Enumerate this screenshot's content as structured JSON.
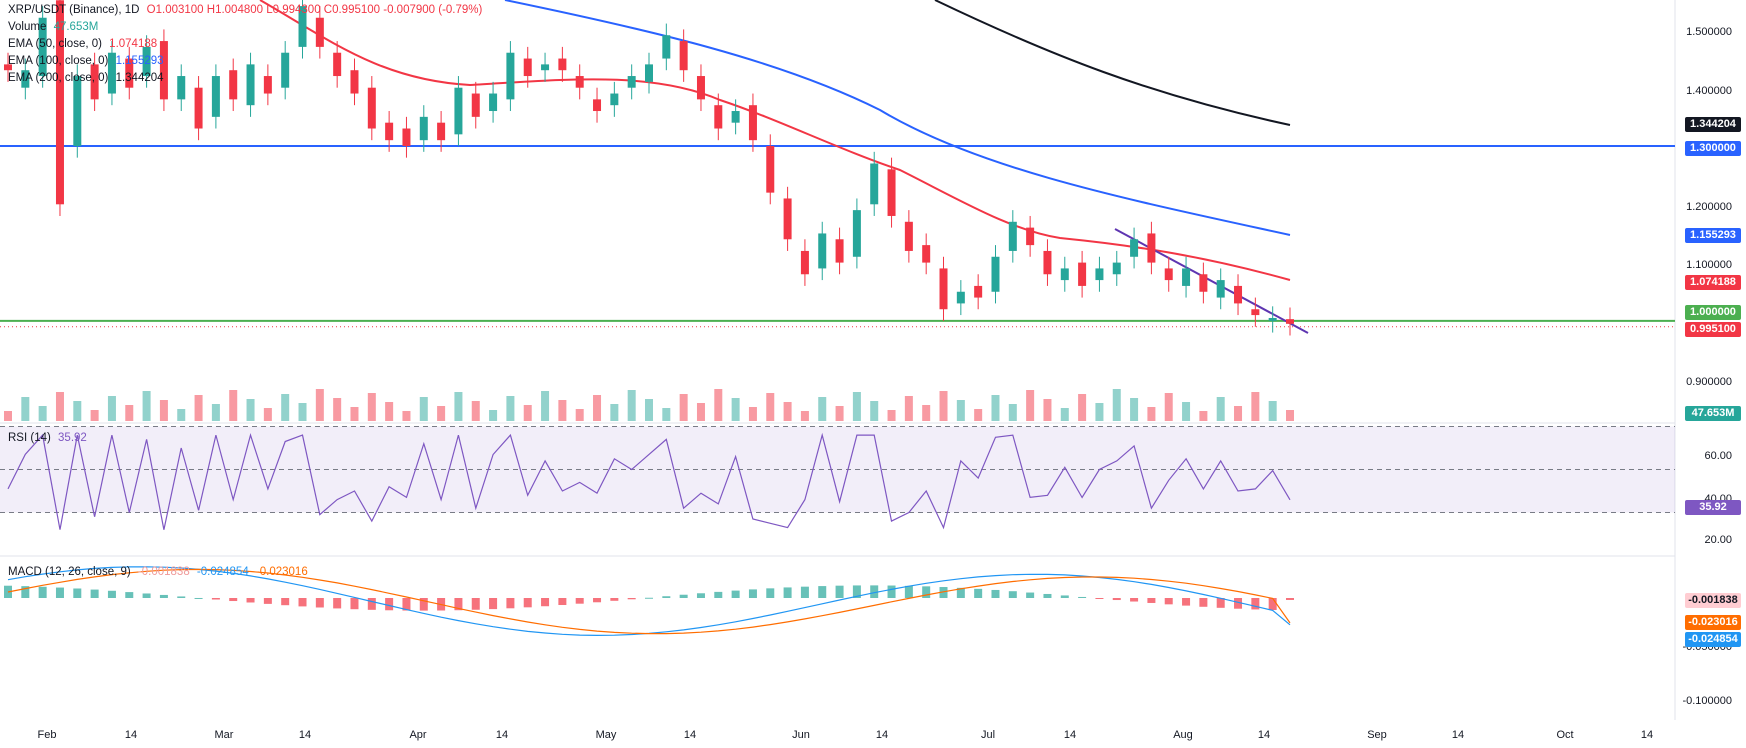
{
  "legend": {
    "symbol": "XRP/USDT (Binance), 1D",
    "ohlc": "O1.003100  H1.004800  L0.994300  C0.995100  -0.007900 (-0.79%)",
    "volume_label": "Volume",
    "volume_value": "47.653M",
    "ema50_label": "EMA (50, close, 0)",
    "ema50_value": "1.074188",
    "ema100_label": "EMA (100, close, 0)",
    "ema100_value": "1.155293",
    "ema200_label": "EMA (200, close, 0)",
    "ema200_value": "1.344204",
    "rsi_label": "RSI (14)",
    "rsi_value": "35.92",
    "macd_label": "MACD (12, 26, close, 9)",
    "macd_hist": "-0.001838",
    "macd_line": "-0.024854",
    "macd_signal": "-0.023016"
  },
  "price_axis": [
    "1.500000",
    "1.400000",
    "1.200000",
    "1.100000",
    "0.900000"
  ],
  "rsi_axis": [
    "60.00",
    "40.00",
    "20.00"
  ],
  "macd_axis": [
    "-0.050000",
    "-0.100000"
  ],
  "price_tags": [
    {
      "text": "1.344204",
      "bg": "#131722",
      "fg": "#ffffff"
    },
    {
      "text": "1.300000",
      "bg": "#2962ff",
      "fg": "#ffffff"
    },
    {
      "text": "1.155293",
      "bg": "#2962ff",
      "fg": "#ffffff"
    },
    {
      "text": "1.074188",
      "bg": "#f23645",
      "fg": "#ffffff"
    },
    {
      "text": "1.000000",
      "bg": "#4caf50",
      "fg": "#ffffff"
    },
    {
      "text": "0.995100",
      "bg": "#f23645",
      "fg": "#ffffff"
    },
    {
      "text": "47.653M",
      "bg": "#26a69a",
      "fg": "#ffffff"
    }
  ],
  "rsi_tag": {
    "text": "35.92",
    "bg": "#7e57c2",
    "fg": "#ffffff"
  },
  "macd_tags": [
    {
      "text": "-0.001838",
      "bg": "#ffcdd2",
      "fg": "#131722"
    },
    {
      "text": "-0.023016",
      "bg": "#ff6d00",
      "fg": "#ffffff"
    },
    {
      "text": "-0.024854",
      "bg": "#2196f3",
      "fg": "#ffffff"
    }
  ],
  "x_axis": [
    "Feb",
    "14",
    "Mar",
    "14",
    "Apr",
    "14",
    "May",
    "14",
    "Jun",
    "14",
    "Jul",
    "14",
    "Aug",
    "14",
    "Sep",
    "14",
    "Oct",
    "14"
  ],
  "chart_data": {
    "type": "candlestick",
    "symbol": "XRP/USDT",
    "interval": "1D",
    "horizontal_levels": [
      1.3,
      1.0
    ],
    "current_close": 0.9951,
    "ema_last": {
      "ema50": 1.074188,
      "ema100": 1.155293,
      "ema200": 1.344204
    },
    "rsi_levels": [
      70,
      50,
      30
    ],
    "rsi_last": 35.92,
    "macd_last": {
      "macd": -0.024854,
      "signal": -0.023016,
      "histogram": -0.001838
    },
    "close_path": [
      [
        1.44,
        1.43
      ],
      [
        1.4,
        1.43
      ],
      [
        1.42,
        1.52
      ],
      [
        1.55,
        1.2
      ],
      [
        1.3,
        1.42
      ],
      [
        1.44,
        1.38
      ],
      [
        1.39,
        1.46
      ],
      [
        1.45,
        1.4
      ],
      [
        1.42,
        1.47
      ],
      [
        1.48,
        1.38
      ],
      [
        1.38,
        1.42
      ],
      [
        1.4,
        1.33
      ],
      [
        1.35,
        1.42
      ],
      [
        1.43,
        1.38
      ],
      [
        1.37,
        1.44
      ],
      [
        1.42,
        1.39
      ],
      [
        1.4,
        1.46
      ],
      [
        1.47,
        1.54
      ],
      [
        1.52,
        1.47
      ],
      [
        1.46,
        1.42
      ],
      [
        1.43,
        1.39
      ],
      [
        1.4,
        1.33
      ],
      [
        1.34,
        1.31
      ],
      [
        1.33,
        1.3
      ],
      [
        1.31,
        1.35
      ],
      [
        1.34,
        1.31
      ],
      [
        1.32,
        1.4
      ],
      [
        1.39,
        1.35
      ],
      [
        1.36,
        1.39
      ],
      [
        1.38,
        1.46
      ],
      [
        1.45,
        1.42
      ],
      [
        1.43,
        1.44
      ],
      [
        1.45,
        1.43
      ],
      [
        1.42,
        1.4
      ],
      [
        1.38,
        1.36
      ],
      [
        1.37,
        1.39
      ],
      [
        1.4,
        1.42
      ],
      [
        1.41,
        1.44
      ],
      [
        1.45,
        1.49
      ],
      [
        1.48,
        1.43
      ],
      [
        1.42,
        1.38
      ],
      [
        1.37,
        1.33
      ],
      [
        1.34,
        1.36
      ],
      [
        1.37,
        1.31
      ],
      [
        1.3,
        1.22
      ],
      [
        1.21,
        1.14
      ],
      [
        1.12,
        1.08
      ],
      [
        1.09,
        1.15
      ],
      [
        1.14,
        1.1
      ],
      [
        1.11,
        1.19
      ],
      [
        1.2,
        1.27
      ],
      [
        1.26,
        1.18
      ],
      [
        1.17,
        1.12
      ],
      [
        1.13,
        1.1
      ],
      [
        1.09,
        1.02
      ],
      [
        1.03,
        1.05
      ],
      [
        1.06,
        1.04
      ],
      [
        1.05,
        1.11
      ],
      [
        1.12,
        1.17
      ],
      [
        1.16,
        1.13
      ],
      [
        1.12,
        1.08
      ],
      [
        1.07,
        1.09
      ],
      [
        1.1,
        1.06
      ],
      [
        1.07,
        1.09
      ],
      [
        1.08,
        1.1
      ],
      [
        1.11,
        1.14
      ],
      [
        1.15,
        1.1
      ],
      [
        1.09,
        1.07
      ],
      [
        1.06,
        1.09
      ],
      [
        1.08,
        1.05
      ],
      [
        1.04,
        1.07
      ],
      [
        1.06,
        1.03
      ],
      [
        1.02,
        1.01
      ],
      [
        1.0,
        1.005
      ],
      [
        1.003,
        0.995
      ]
    ]
  }
}
